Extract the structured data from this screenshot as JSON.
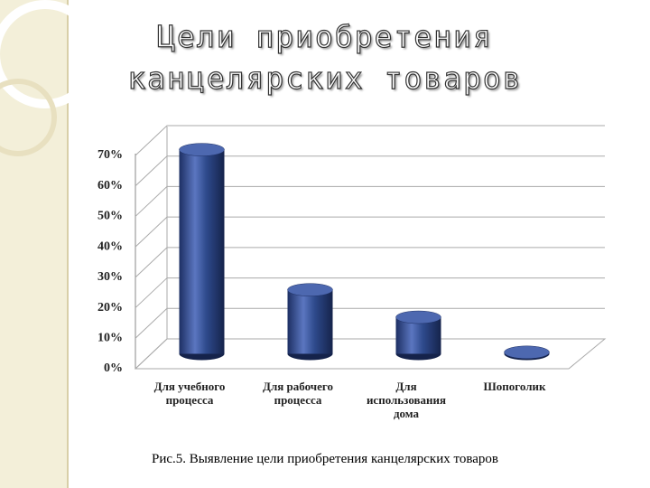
{
  "chart_data": {
    "type": "bar",
    "title": "Цели приобретения канцелярских товаров",
    "caption": "Рис.5. Выявление цели приобретения канцелярских товаров",
    "categories": [
      "Для учебного процесса",
      "Для рабочего процесса",
      "Для использования дома",
      "Шопоголик"
    ],
    "values": [
      67,
      21,
      12,
      0.5
    ],
    "color": "#2e4a8c",
    "ylim": [
      0,
      70
    ],
    "yticks": [
      {
        "value": 0,
        "label": "0%"
      },
      {
        "value": 10,
        "label": "10%"
      },
      {
        "value": 20,
        "label": "20%"
      },
      {
        "value": 30,
        "label": "30%"
      },
      {
        "value": 40,
        "label": "40%"
      },
      {
        "value": 50,
        "label": "50%"
      },
      {
        "value": 60,
        "label": "60%"
      },
      {
        "value": 70,
        "label": "70%"
      }
    ],
    "grid": true
  }
}
